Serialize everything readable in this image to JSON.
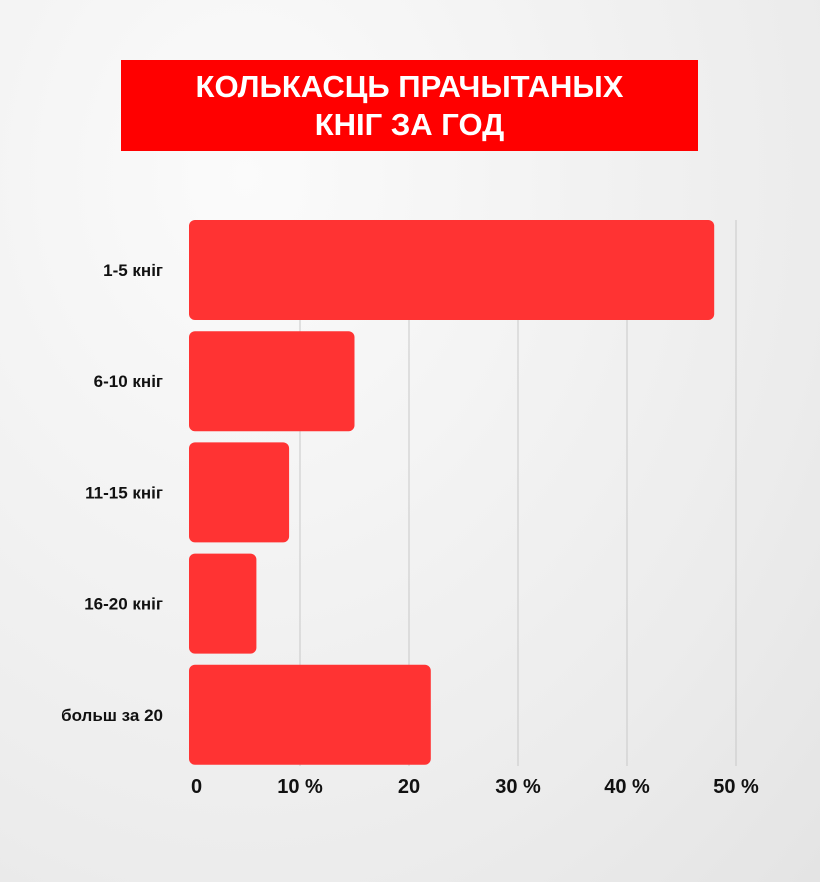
{
  "chart_data": {
    "type": "bar",
    "orientation": "horizontal",
    "title_lines": [
      "КОЛЬКАСЦЬ ПРАЧЫТАНЫХ",
      "КНІГ ЗА ГОД"
    ],
    "categories": [
      "1-5 кніг",
      "6-10 кніг",
      "11-15 кніг",
      "16-20 кніг",
      "больш за 20"
    ],
    "values": [
      48,
      15,
      9,
      6,
      22
    ],
    "unit": "%",
    "xlim": [
      0,
      50
    ],
    "xticks": [
      0,
      10,
      20,
      30,
      40,
      50
    ],
    "xtick_labels": [
      "0",
      "10 %",
      "20",
      "30 %",
      "40 %",
      "50 %"
    ],
    "grid": true,
    "bar_color": "#ff3333",
    "title_background": "#ff0000"
  }
}
